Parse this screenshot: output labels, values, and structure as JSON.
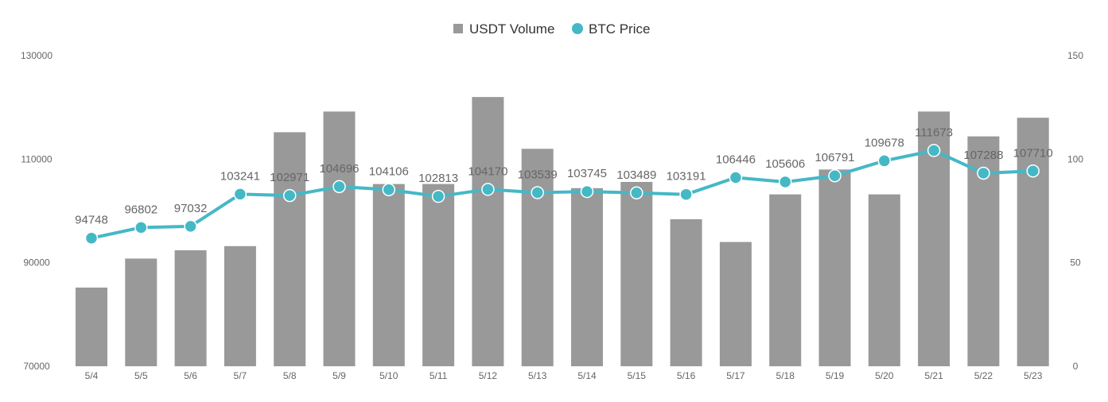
{
  "chart_data": {
    "type": "bar+line",
    "categories": [
      "5/4",
      "5/5",
      "5/6",
      "5/7",
      "5/8",
      "5/9",
      "5/10",
      "5/11",
      "5/12",
      "5/13",
      "5/14",
      "5/15",
      "5/16",
      "5/17",
      "5/18",
      "5/19",
      "5/20",
      "5/21",
      "5/22",
      "5/23"
    ],
    "series": [
      {
        "name": "USDT Volume",
        "type": "bar",
        "axis": "right",
        "color": "#999999",
        "values": [
          38,
          52,
          56,
          58,
          113,
          123,
          88,
          88,
          130,
          105,
          86,
          89,
          71,
          60,
          83,
          95,
          83,
          123,
          111,
          120
        ]
      },
      {
        "name": "BTC Price",
        "type": "line",
        "axis": "left",
        "color": "#45B8C6",
        "values": [
          94748,
          96802,
          97032,
          103241,
          102971,
          104696,
          104106,
          102813,
          104170,
          103539,
          103745,
          103489,
          103191,
          106446,
          105606,
          106791,
          109678,
          111673,
          107288,
          107710
        ]
      }
    ],
    "left_axis": {
      "min": 70000,
      "max": 130000,
      "ticks": [
        "130000",
        "110000",
        "90000",
        "70000"
      ]
    },
    "right_axis": {
      "min": 0,
      "max": 150,
      "ticks": [
        "150",
        "100",
        "50",
        "0"
      ]
    },
    "legend": {
      "position": "top-center",
      "entries": [
        "USDT Volume",
        "BTC Price"
      ]
    },
    "grid": false,
    "title": ""
  }
}
